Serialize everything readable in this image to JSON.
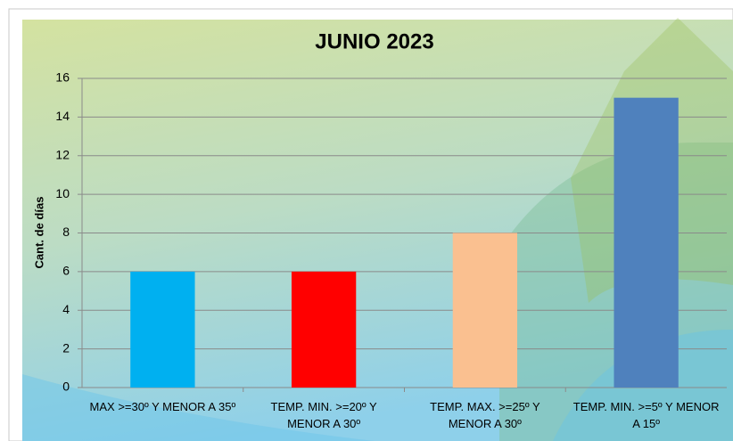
{
  "chart_data": {
    "type": "bar",
    "title": "JUNIO 2023",
    "y_label": "Cant. de días",
    "categories": [
      "MAX >=30º Y MENOR A 35º",
      "TEMP. MIN. >=20º Y MENOR A 30º",
      "TEMP. MAX. >=25º Y MENOR A 30º",
      "TEMP. MIN. >=5º Y MENOR A 15º"
    ],
    "values": [
      6,
      6,
      8,
      15
    ],
    "colors": [
      "#00b0f0",
      "#ff0000",
      "#fac090",
      "#4f81bd"
    ],
    "ylim": [
      0,
      16
    ],
    "yticks": [
      0,
      2,
      4,
      6,
      8,
      10,
      12,
      14,
      16
    ],
    "grid": true
  }
}
